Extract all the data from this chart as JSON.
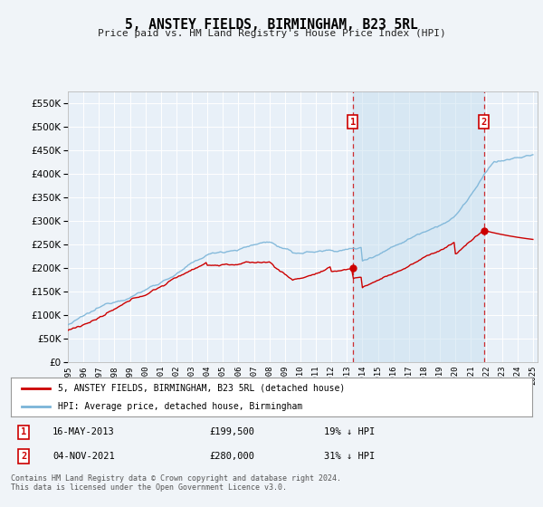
{
  "title": "5, ANSTEY FIELDS, BIRMINGHAM, B23 5RL",
  "subtitle": "Price paid vs. HM Land Registry's House Price Index (HPI)",
  "bg_color": "#f0f4f8",
  "plot_bg_color": "#e8f0f8",
  "grid_color": "#ffffff",
  "hpi_color": "#7ab4d8",
  "price_color": "#cc0000",
  "ylim": [
    0,
    575000
  ],
  "yticks": [
    0,
    50000,
    100000,
    150000,
    200000,
    250000,
    300000,
    350000,
    400000,
    450000,
    500000,
    550000
  ],
  "ytick_labels": [
    "£0",
    "£50K",
    "£100K",
    "£150K",
    "£200K",
    "£250K",
    "£300K",
    "£350K",
    "£400K",
    "£450K",
    "£500K",
    "£550K"
  ],
  "year_start": 1995,
  "year_end": 2025,
  "marker1_year": 2013.37,
  "marker1_price": 199500,
  "marker1_label": "1",
  "marker2_year": 2021.84,
  "marker2_price": 280000,
  "marker2_label": "2",
  "legend_label1": "5, ANSTEY FIELDS, BIRMINGHAM, B23 5RL (detached house)",
  "legend_label2": "HPI: Average price, detached house, Birmingham",
  "annotation1_date": "16-MAY-2013",
  "annotation1_price": "£199,500",
  "annotation1_hpi": "19% ↓ HPI",
  "annotation2_date": "04-NOV-2021",
  "annotation2_price": "£280,000",
  "annotation2_hpi": "31% ↓ HPI",
  "footer": "Contains HM Land Registry data © Crown copyright and database right 2024.\nThis data is licensed under the Open Government Licence v3.0."
}
